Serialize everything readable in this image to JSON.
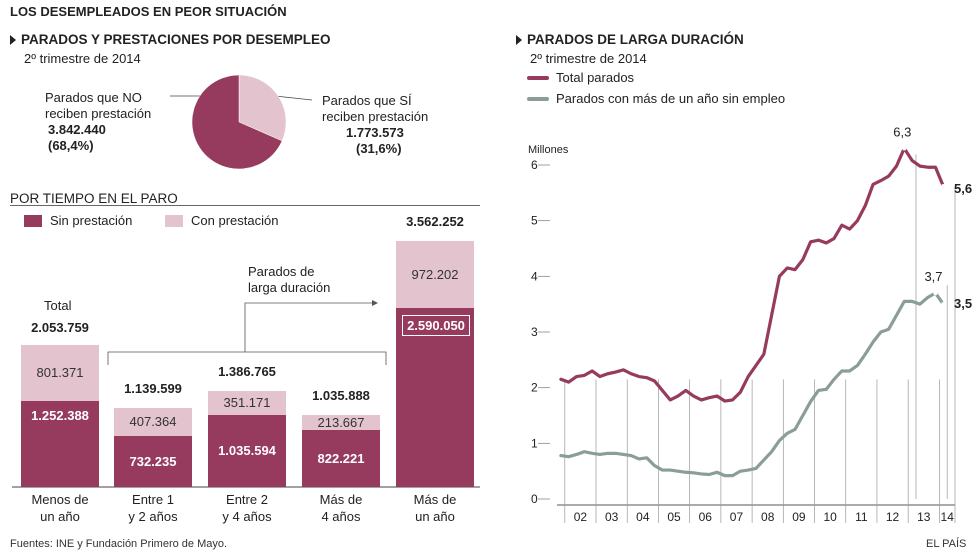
{
  "title": "LOS DESEMPLEADOS EN PEOR SITUACIÓN",
  "pie_section": {
    "heading": "PARADOS Y PRESTACIONES POR DESEMPLEO",
    "subheading": "2º trimestre de 2014",
    "no_label_1": "Parados que NO",
    "no_label_2": "reciben prestación",
    "no_value": "3.842.440",
    "no_pct": "(68,4%)",
    "si_label_1": "Parados que SÍ",
    "si_label_2": "reciben prestación",
    "si_value": "1.773.573",
    "si_pct": "(31,6%)"
  },
  "bar_section": {
    "heading": "POR TIEMPO EN EL PARO",
    "legend_sin": "Sin prestación",
    "legend_con": "Con prestación",
    "total_label": "Total",
    "total_value": "2.053.759",
    "bracket_label_1": "Parados de",
    "bracket_label_2": "larga duración"
  },
  "line_section": {
    "heading": "PARADOS DE LARGA DURACIÓN",
    "subheading": "2º trimestre de 2014",
    "legend_total": "Total parados",
    "legend_long": "Parados con más de un año sin empleo",
    "y_unit": "Millones"
  },
  "footer": {
    "source": "Fuentes: INE y Fundación Primero de Mayo.",
    "brand": "EL PAÍS"
  },
  "colors": {
    "sin": "#963a5e",
    "con": "#e3c3cd",
    "total_line": "#963a5e",
    "long_line": "#8a9e97"
  },
  "chart_data": [
    {
      "type": "pie",
      "title": "PARADOS Y PRESTACIONES POR DESEMPLEO",
      "slices": [
        {
          "label": "Parados que NO reciben prestación",
          "value": 3842440,
          "pct": 68.4
        },
        {
          "label": "Parados que SÍ reciben prestación",
          "value": 1773573,
          "pct": 31.6
        }
      ]
    },
    {
      "type": "bar",
      "stacked": true,
      "title": "POR TIEMPO EN EL PARO",
      "categories": [
        "Menos de un año",
        "Entre 1 y 2 años",
        "Entre 2 y 4 años",
        "Más de 4 años",
        "Más de un año"
      ],
      "series": [
        {
          "name": "Sin prestación",
          "values": [
            1252388,
            732235,
            1035594,
            822221,
            2590050
          ],
          "labels": [
            "1.252.388",
            "732.235",
            "1.035.594",
            "822.221",
            "2.590.050"
          ]
        },
        {
          "name": "Con prestación",
          "values": [
            801371,
            407364,
            351171,
            213667,
            972202
          ],
          "labels": [
            "801.371",
            "407.364",
            "351.171",
            "213.667",
            "972.202"
          ]
        }
      ],
      "totals": [
        2053759,
        1139599,
        1386765,
        1035888,
        3562252
      ],
      "total_labels": [
        "2.053.759",
        "1.139.599",
        "1.386.765",
        "1.035.888",
        "3.562.252"
      ]
    },
    {
      "type": "line",
      "title": "PARADOS DE LARGA DURACIÓN",
      "ylabel": "Millones",
      "ylim": [
        0,
        6.6
      ],
      "yticks": [
        0,
        1,
        2,
        3,
        4,
        5,
        6
      ],
      "x_start": 2001.125,
      "x_step": 0.25,
      "xticks": [
        "02",
        "03",
        "04",
        "05",
        "06",
        "07",
        "08",
        "09",
        "10",
        "11",
        "12",
        "13",
        "14"
      ],
      "series": [
        {
          "name": "Total parados",
          "values": [
            2.15,
            2.1,
            2.2,
            2.22,
            2.3,
            2.2,
            2.25,
            2.28,
            2.32,
            2.25,
            2.2,
            2.18,
            2.12,
            1.95,
            1.78,
            1.85,
            1.95,
            1.85,
            1.78,
            1.82,
            1.85,
            1.76,
            1.78,
            1.92,
            2.2,
            2.4,
            2.6,
            3.3,
            4.0,
            4.15,
            4.12,
            4.3,
            4.62,
            4.65,
            4.6,
            4.68,
            4.92,
            4.85,
            5.0,
            5.27,
            5.65,
            5.72,
            5.8,
            5.98,
            6.3,
            6.08,
            5.98,
            5.96,
            5.96,
            5.62
          ],
          "start_label": "",
          "peak_label": "6,3",
          "end_label": "5,6"
        },
        {
          "name": "Parados con más de un año sin empleo",
          "values": [
            0.78,
            0.76,
            0.8,
            0.85,
            0.82,
            0.8,
            0.82,
            0.82,
            0.8,
            0.78,
            0.72,
            0.74,
            0.6,
            0.52,
            0.52,
            0.5,
            0.48,
            0.47,
            0.45,
            0.44,
            0.48,
            0.42,
            0.42,
            0.5,
            0.52,
            0.55,
            0.7,
            0.85,
            1.05,
            1.18,
            1.25,
            1.5,
            1.75,
            1.95,
            1.97,
            2.15,
            2.3,
            2.3,
            2.4,
            2.6,
            2.82,
            3.0,
            3.05,
            3.3,
            3.55,
            3.55,
            3.5,
            3.62,
            3.7,
            3.5
          ],
          "peak_label": "3,7",
          "end_label": "3,5"
        }
      ]
    }
  ]
}
